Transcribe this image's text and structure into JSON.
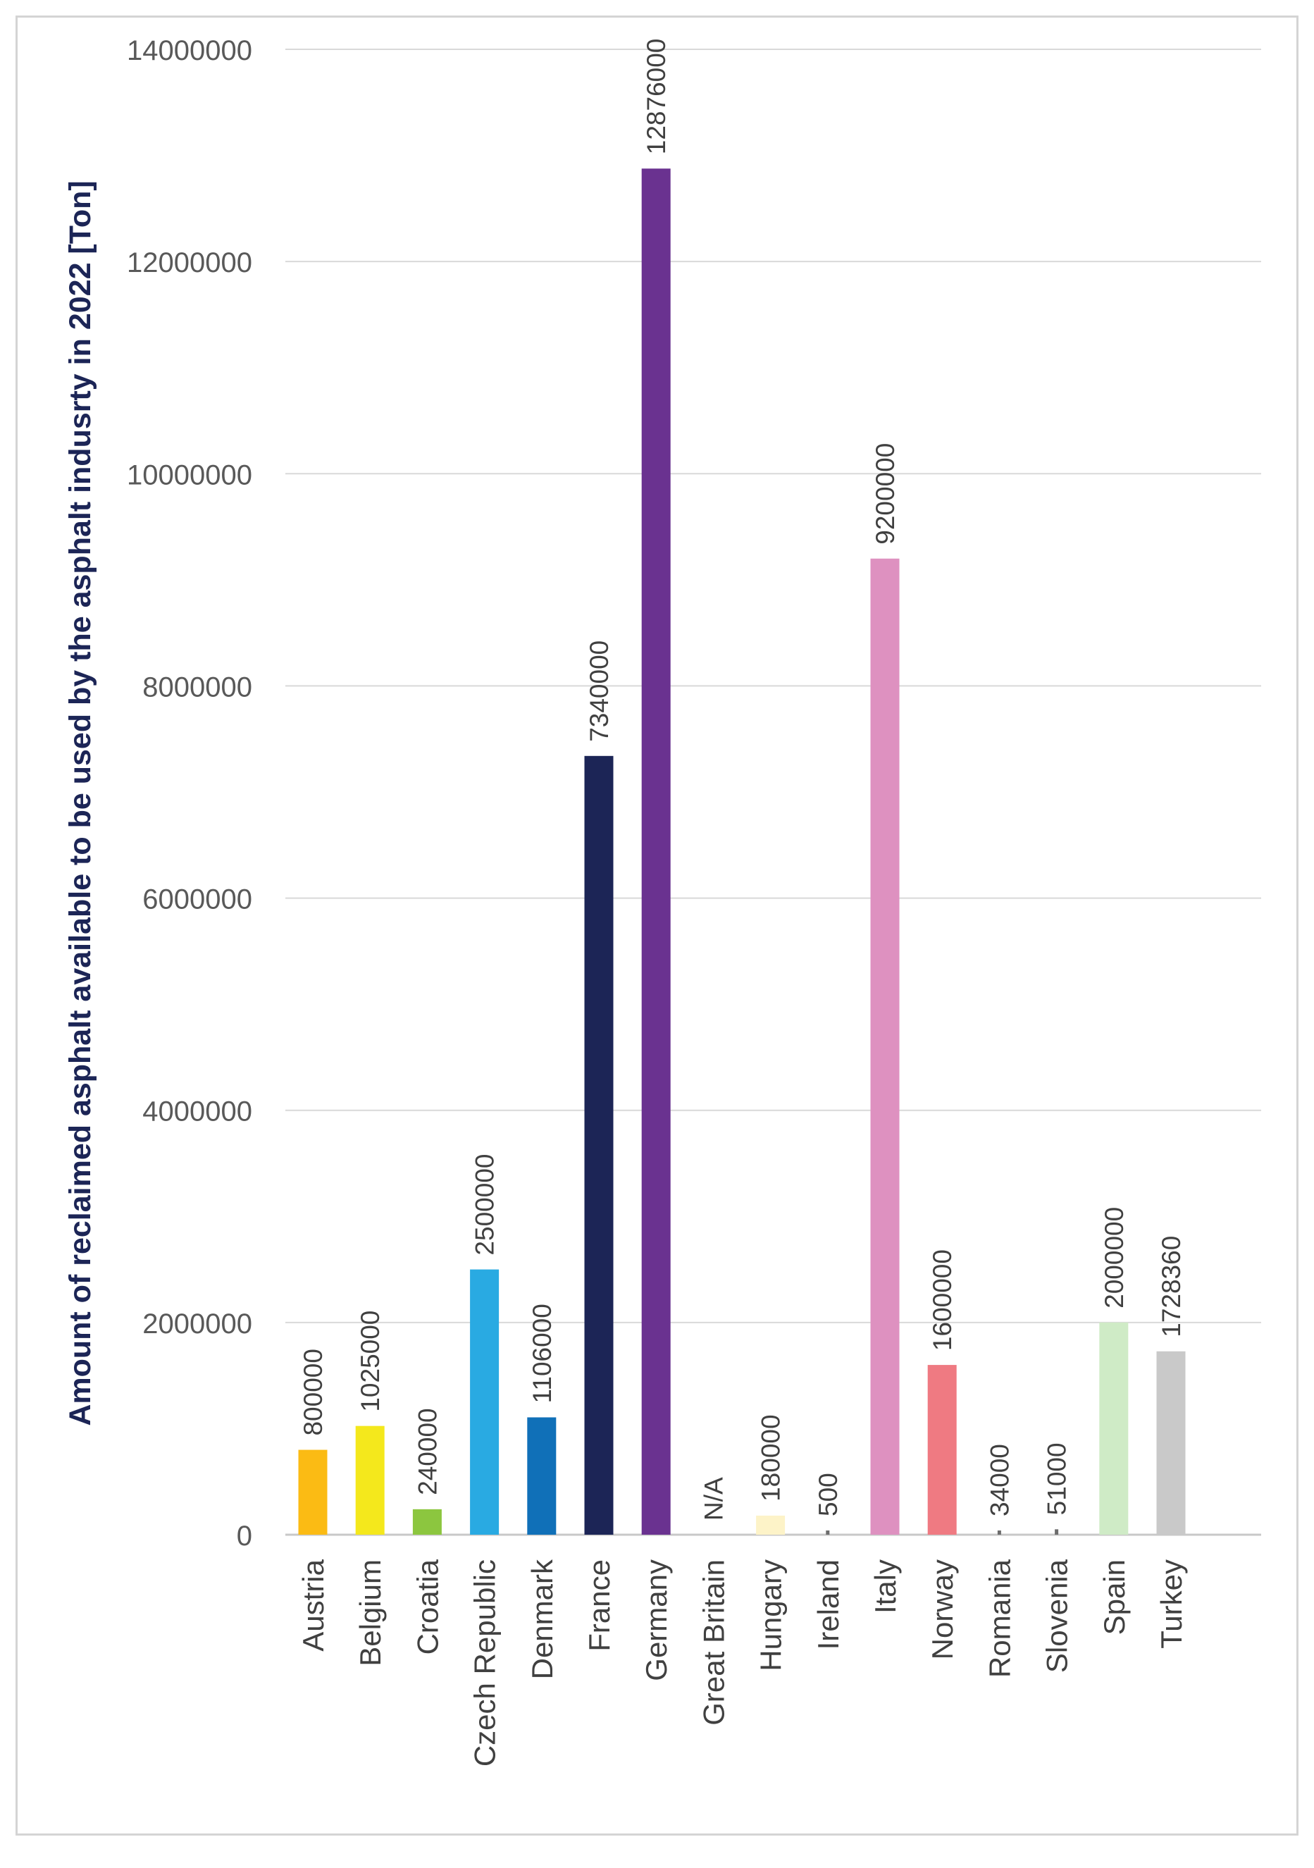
{
  "chart_data": {
    "type": "bar",
    "title": "",
    "ylabel": "Amount of reclaimed asphalt available to be used by the asphalt indusrty in 2022  [Ton]",
    "xlabel": "",
    "ylim": [
      0,
      14000000
    ],
    "yticks": [
      0,
      2000000,
      4000000,
      6000000,
      8000000,
      10000000,
      12000000,
      14000000
    ],
    "ytick_labels": [
      "0",
      "2000000",
      "4000000",
      "6000000",
      "8000000",
      "10000000",
      "12000000",
      "14000000"
    ],
    "grid": true,
    "legend": "none",
    "categories": [
      "Austria",
      "Belgium",
      "Croatia",
      "Czech Republic",
      "Denmark",
      "France",
      "Germany",
      "Great Britain",
      "Hungary",
      "Ireland",
      "Italy",
      "Norway",
      "Romania",
      "Slovenia",
      "Spain",
      "Turkey"
    ],
    "values": [
      800000,
      1025000,
      240000,
      2500000,
      1106000,
      7340000,
      12876000,
      null,
      180000,
      500,
      9200000,
      1600000,
      34000,
      51000,
      2000000,
      1728360
    ],
    "data_labels": [
      "800000",
      "1025000",
      "240000",
      "2500000",
      "1106000",
      "7340000",
      "12876000",
      "N/A",
      "180000",
      "500",
      "9200000",
      "1600000",
      "34000",
      "51000",
      "2000000",
      "1728360"
    ],
    "colors": [
      "#fbbb14",
      "#f4e81c",
      "#8cc63f",
      "#29aae2",
      "#1070b8",
      "#1c2556",
      "#6a3290",
      "#ffffff",
      "#fdf3c8",
      "#6d6d6d",
      "#de91c0",
      "#ef7a82",
      "#6d6d6d",
      "#6d6d6d",
      "#cfebc6",
      "#c9c9c9"
    ]
  }
}
